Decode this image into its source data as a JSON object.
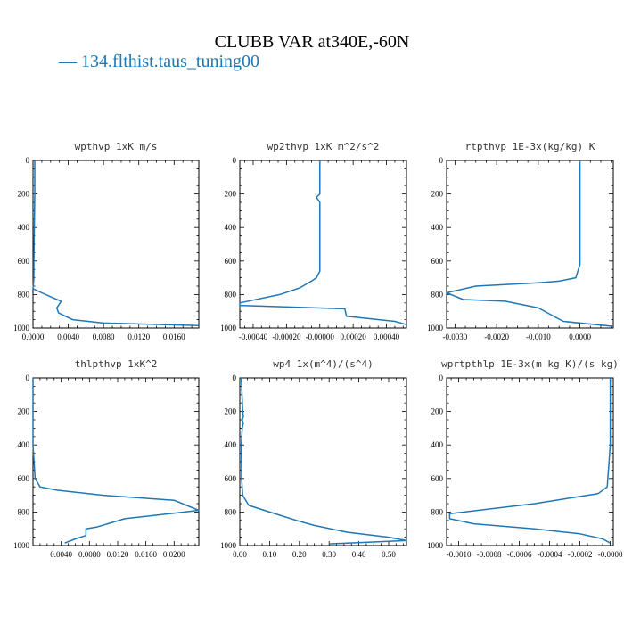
{
  "title": "CLUBB VAR at340E,-60N",
  "legend": {
    "label": "— 134.flthist.taus_tuning00",
    "color": "#1f77b4"
  },
  "chart_data": [
    {
      "type": "line",
      "title": "wpthvp   1xK m/s",
      "xlim": [
        0,
        0.0188
      ],
      "ylim": [
        1000,
        0
      ],
      "xticks": [
        "0.0000",
        "0.0040",
        "0.0080",
        "0.0120",
        "0.0160"
      ],
      "xtick_values": [
        0,
        0.004,
        0.008,
        0.012,
        0.016
      ],
      "yticks": [
        "0",
        "200",
        "400",
        "600",
        "800",
        "1000"
      ],
      "series": [
        {
          "color": "#1f77b4",
          "x": [
            0.0002,
            0.0002,
            0.00015,
            0.0001,
            0.0001,
            5e-05,
            0.0,
            0.001,
            0.0025,
            0.0032,
            0.0027,
            0.0029,
            0.0045,
            0.008,
            0.0188
          ],
          "y": [
            0,
            200,
            400,
            600,
            700,
            740,
            765,
            790,
            825,
            840,
            880,
            910,
            950,
            970,
            985
          ]
        }
      ]
    },
    {
      "type": "line",
      "title": "wp2thvp   1xK m^2/s^2",
      "xlim": [
        -0.00048,
        0.00052
      ],
      "ylim": [
        1000,
        0
      ],
      "xticks": [
        "-0.00040",
        "-0.00020",
        "-0.00000",
        "0.00020",
        "0.00040"
      ],
      "xtick_values": [
        -0.0004,
        -0.0002,
        0,
        0.0002,
        0.0004
      ],
      "yticks": [
        "0",
        "200",
        "400",
        "600",
        "800",
        "1000"
      ],
      "series": [
        {
          "color": "#1f77b4",
          "x": [
            0.0,
            0.0,
            -2e-05,
            0.0,
            0.0,
            0.0,
            0.0,
            -2e-05,
            -5e-05,
            -0.00012,
            -0.00024,
            -0.00048,
            -0.00048,
            0.00015,
            0.00016,
            0.00045,
            0.00052
          ],
          "y": [
            0,
            200,
            220,
            250,
            400,
            600,
            660,
            700,
            720,
            760,
            800,
            850,
            865,
            885,
            930,
            960,
            980
          ]
        }
      ]
    },
    {
      "type": "line",
      "title": "rtpthvp   1E-3x(kg/kg) K",
      "xlim": [
        -0.0032,
        0.0008
      ],
      "ylim": [
        1000,
        0
      ],
      "xticks": [
        "-0.0030",
        "-0.0020",
        "-0.0010",
        "0.0000"
      ],
      "xtick_values": [
        -0.003,
        -0.002,
        -0.001,
        0
      ],
      "yticks": [
        "0",
        "200",
        "400",
        "600",
        "800",
        "1000"
      ],
      "series": [
        {
          "color": "#1f77b4",
          "x": [
            0.0,
            0.0,
            0.0,
            0.0,
            -0.0001,
            -0.0005,
            -0.001,
            -0.0025,
            -0.0032,
            -0.0028,
            -0.0018,
            -0.001,
            -0.0007,
            -0.0004,
            0.0008
          ],
          "y": [
            0,
            200,
            400,
            620,
            700,
            720,
            730,
            750,
            790,
            830,
            840,
            880,
            920,
            960,
            990
          ]
        }
      ]
    },
    {
      "type": "line",
      "title": "thlpthvp   1xK^2",
      "xlim": [
        0,
        0.0235
      ],
      "ylim": [
        1000,
        0
      ],
      "xticks": [
        "0.0040",
        "0.0080",
        "0.0120",
        "0.0160",
        "0.0200"
      ],
      "xtick_values": [
        0.004,
        0.008,
        0.012,
        0.016,
        0.02
      ],
      "yticks": [
        "0",
        "200",
        "400",
        "600",
        "800",
        "1000"
      ],
      "series": [
        {
          "color": "#1f77b4",
          "x": [
            0.0,
            0.0,
            0.0,
            0.0003,
            0.001,
            0.0035,
            0.01,
            0.02,
            0.0235,
            0.0215,
            0.013,
            0.009,
            0.0075,
            0.0075,
            0.006,
            0.0045
          ],
          "y": [
            0,
            200,
            400,
            600,
            650,
            670,
            700,
            730,
            790,
            800,
            840,
            890,
            900,
            940,
            960,
            985
          ]
        }
      ]
    },
    {
      "type": "line",
      "title": "wp4   1x(m^4)/(s^4)",
      "xlim": [
        0,
        0.56
      ],
      "ylim": [
        1000,
        0
      ],
      "xticks": [
        "0.00",
        "0.10",
        "0.20",
        "0.30",
        "0.40",
        "0.50"
      ],
      "xtick_values": [
        0,
        0.1,
        0.2,
        0.3,
        0.4,
        0.5
      ],
      "yticks": [
        "0",
        "200",
        "400",
        "600",
        "800",
        "1000"
      ],
      "series": [
        {
          "color": "#1f77b4",
          "x": [
            0.005,
            0.01,
            0.012,
            0.008,
            0.012,
            0.008,
            0.005,
            0.006,
            0.01,
            0.03,
            0.1,
            0.19,
            0.25,
            0.36,
            0.5,
            0.56,
            0.3
          ],
          "y": [
            0,
            200,
            230,
            250,
            270,
            300,
            400,
            600,
            700,
            760,
            800,
            850,
            880,
            920,
            950,
            970,
            990
          ]
        }
      ]
    },
    {
      "type": "line",
      "title": "wprtpthlp   1E-3x(m kg K)/(s kg)",
      "xlim": [
        -0.00108,
        2e-05
      ],
      "ylim": [
        1000,
        0
      ],
      "xticks": [
        "-0.0010",
        "-0.0008",
        "-0.0006",
        "-0.0004",
        "-0.0002",
        "-0.0000"
      ],
      "xtick_values": [
        -0.001,
        -0.0008,
        -0.0006,
        -0.0004,
        -0.0002,
        0
      ],
      "yticks": [
        "0",
        "200",
        "400",
        "600",
        "800",
        "1000"
      ],
      "series": [
        {
          "color": "#1f77b4",
          "x": [
            0.0,
            0.0,
            0.0,
            -2e-05,
            -8e-05,
            -0.0005,
            -0.00106,
            -0.00106,
            -0.0009,
            -0.0005,
            -0.0002,
            -5e-05,
            0.0
          ],
          "y": [
            0,
            200,
            400,
            650,
            690,
            750,
            810,
            840,
            870,
            900,
            930,
            960,
            985
          ]
        }
      ]
    }
  ]
}
